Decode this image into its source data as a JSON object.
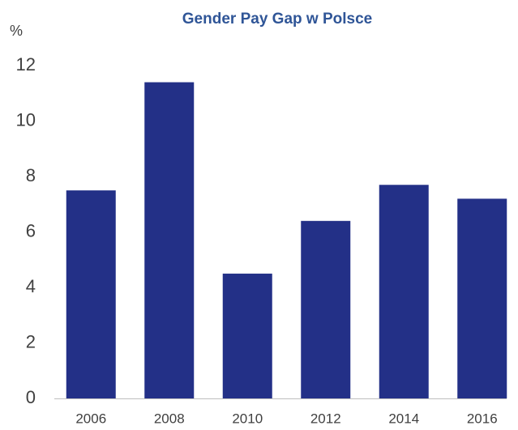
{
  "chart_data": {
    "type": "bar",
    "title": "Gender Pay Gap w Polsce",
    "y_axis_label": "%",
    "categories": [
      "2006",
      "2008",
      "2010",
      "2012",
      "2014",
      "2016"
    ],
    "values": [
      7.5,
      11.4,
      4.5,
      6.4,
      7.7,
      7.2
    ],
    "color": "#233087",
    "ylim": [
      0,
      12
    ],
    "yticks": [
      0,
      2,
      4,
      6,
      8,
      10,
      12
    ],
    "grid": false
  }
}
